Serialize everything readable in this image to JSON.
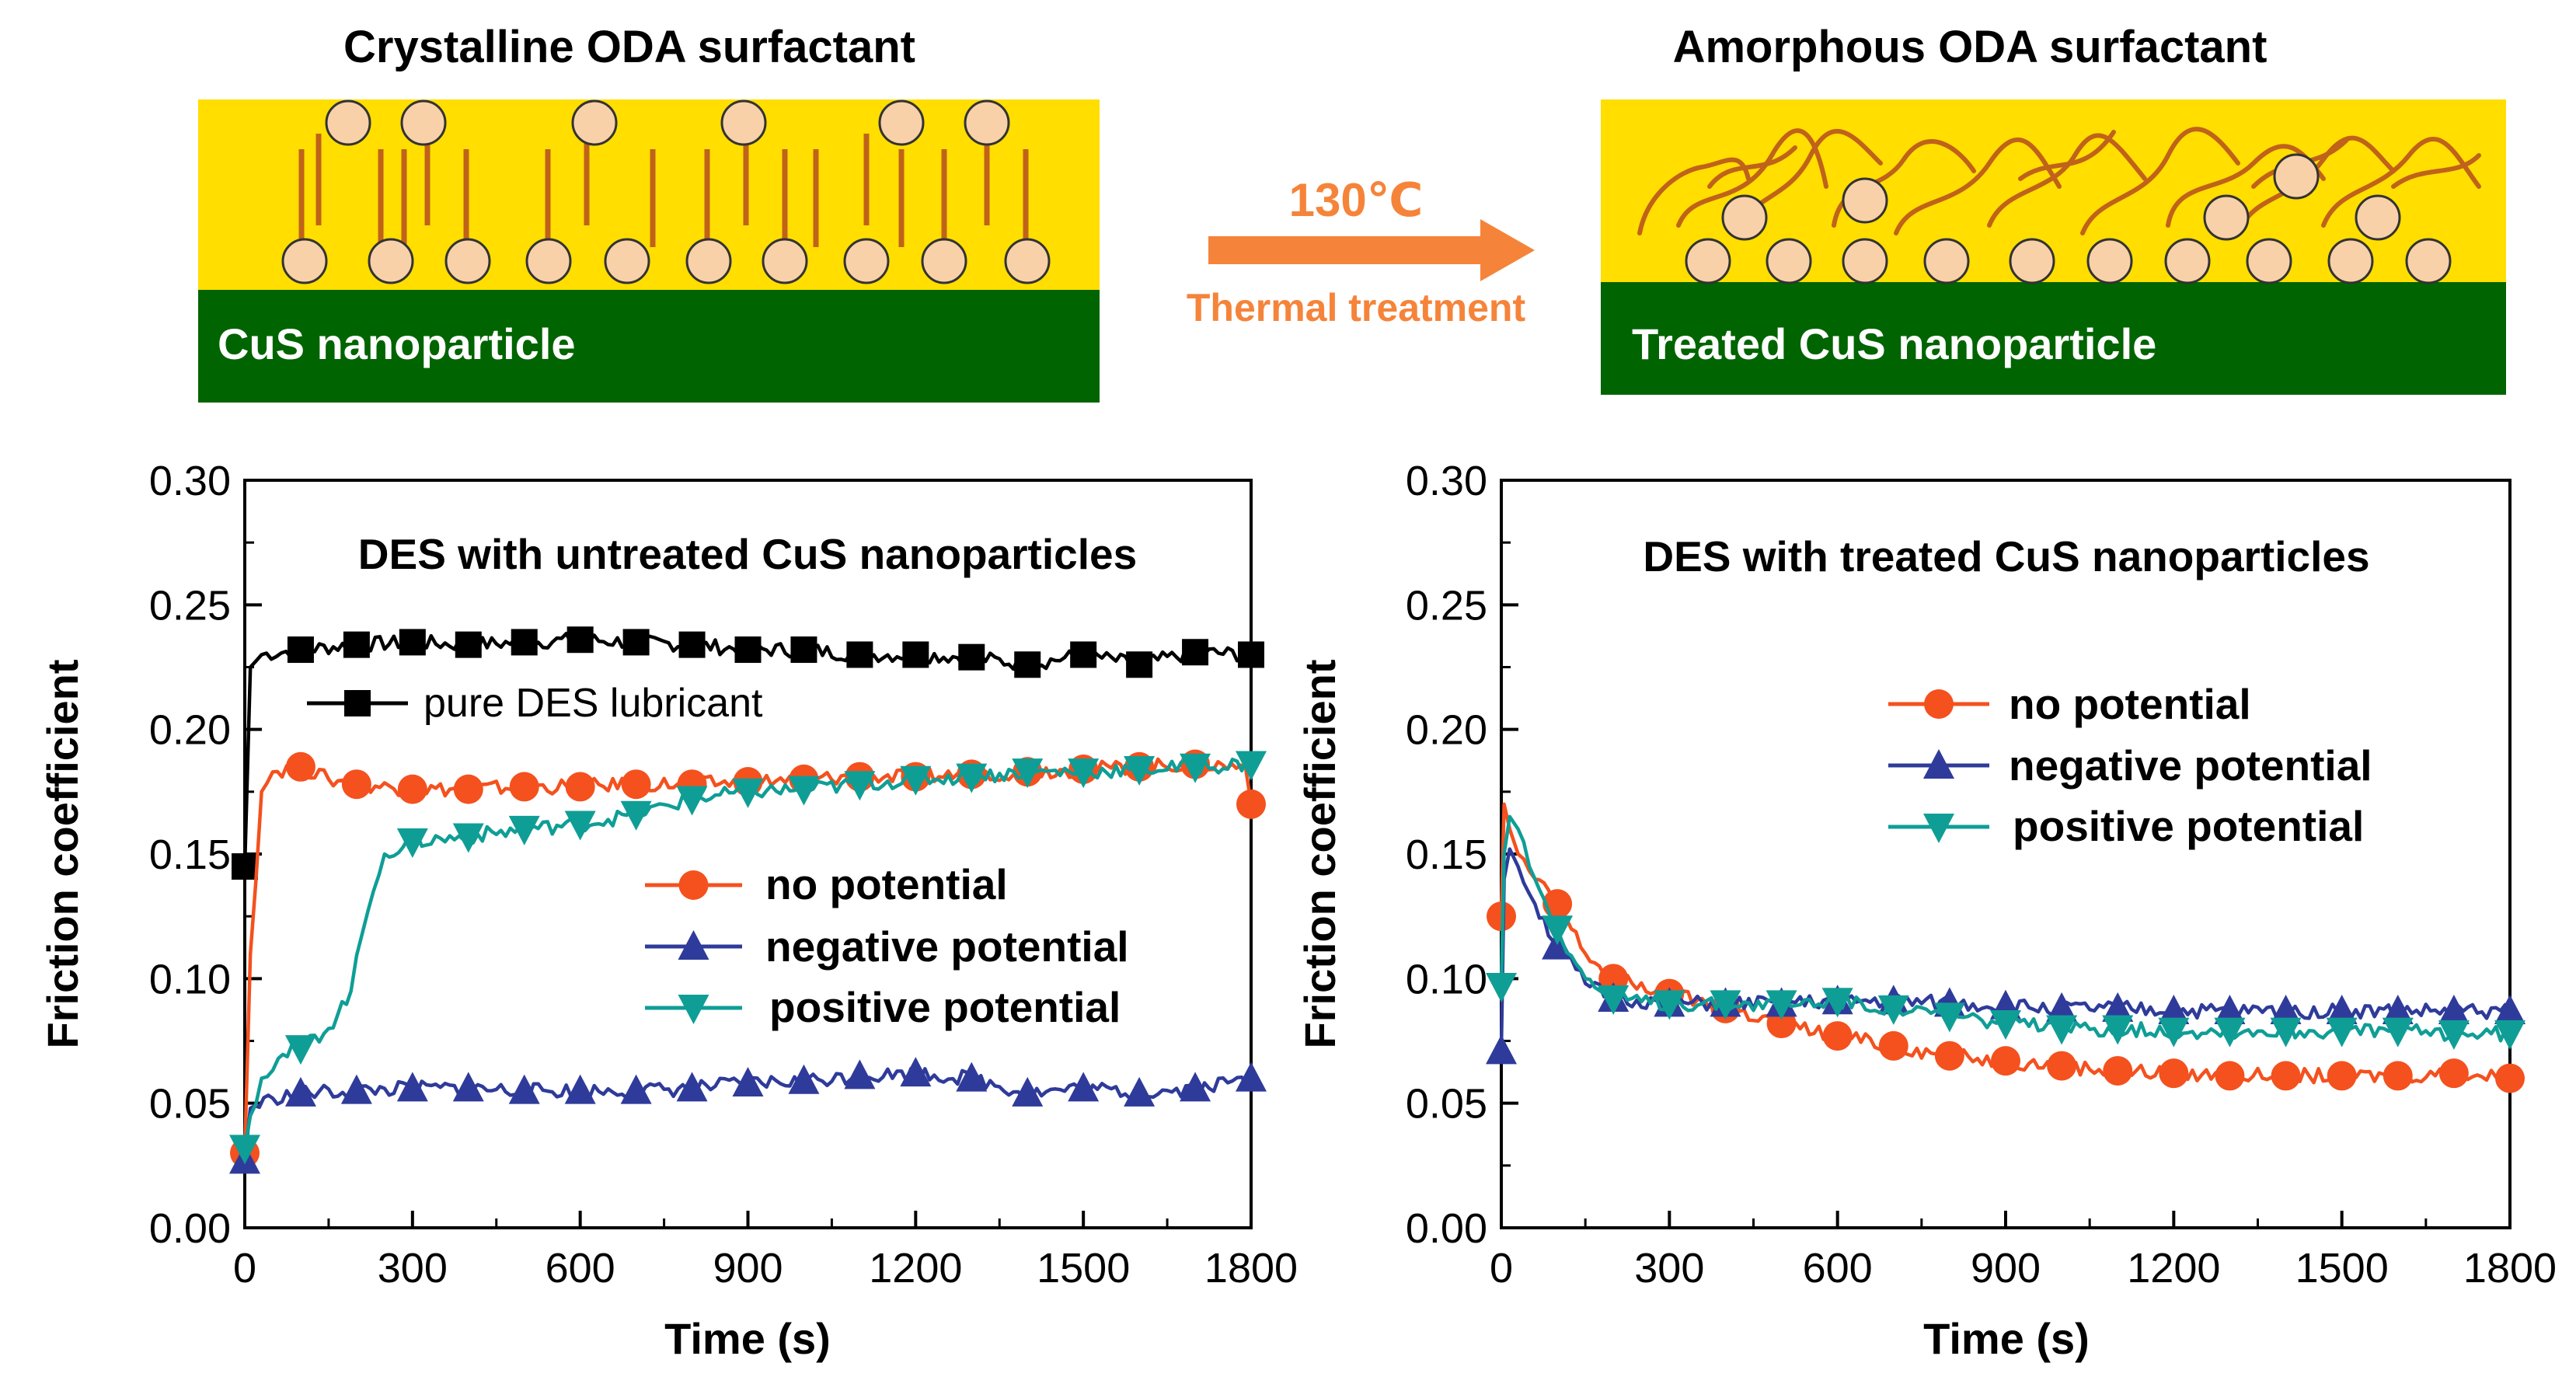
{
  "schematic": {
    "left": {
      "title": "Crystalline ODA surfactant",
      "substrate_label": "CuS nanoparticle"
    },
    "arrow": {
      "temperature": "130℃",
      "caption": "Thermal treatment"
    },
    "right": {
      "title": "Amorphous ODA surfactant",
      "substrate_label": "Treated CuS nanoparticle"
    },
    "colors": {
      "coating": "#ffde00",
      "substrate": "#006400",
      "head": "#f9d1a8",
      "tail": "#c0621a",
      "arrow": "#f5843a"
    }
  },
  "chart_data": [
    {
      "type": "line",
      "title": "DES with untreated CuS nanoparticles",
      "xlabel": "Time (s)",
      "ylabel": "Friction coefficient",
      "xlim": [
        0,
        1800
      ],
      "ylim": [
        0,
        0.3
      ],
      "xticks": [
        "0",
        "300",
        "600",
        "900",
        "1200",
        "1500",
        "1800"
      ],
      "yticks": [
        "0.00",
        "0.05",
        "0.10",
        "0.15",
        "0.20",
        "0.25",
        "0.30"
      ],
      "legends": [
        {
          "entries": [
            "pure DES lubricant"
          ]
        },
        {
          "entries": [
            "no potential",
            "negative potential",
            "positive potential"
          ]
        }
      ],
      "series": [
        {
          "name": "pure DES lubricant",
          "color": "#000000",
          "marker": "square",
          "x": [
            0,
            10,
            30,
            100,
            200,
            300,
            400,
            500,
            600,
            700,
            800,
            900,
            1000,
            1100,
            1200,
            1300,
            1400,
            1500,
            1600,
            1700,
            1800
          ],
          "y": [
            0.145,
            0.225,
            0.23,
            0.232,
            0.234,
            0.235,
            0.234,
            0.235,
            0.236,
            0.235,
            0.234,
            0.232,
            0.232,
            0.23,
            0.23,
            0.229,
            0.226,
            0.23,
            0.226,
            0.231,
            0.23
          ]
        },
        {
          "name": "no potential",
          "color": "#f4511e",
          "marker": "circle",
          "x": [
            0,
            10,
            30,
            50,
            100,
            150,
            200,
            300,
            400,
            500,
            600,
            700,
            800,
            900,
            1000,
            1100,
            1200,
            1300,
            1400,
            1500,
            1600,
            1700,
            1790,
            1800
          ],
          "y": [
            0.03,
            0.11,
            0.175,
            0.183,
            0.185,
            0.18,
            0.178,
            0.176,
            0.176,
            0.177,
            0.177,
            0.178,
            0.178,
            0.179,
            0.18,
            0.181,
            0.181,
            0.182,
            0.183,
            0.184,
            0.185,
            0.186,
            0.185,
            0.17
          ]
        },
        {
          "name": "negative potential",
          "color": "#2f3b9a",
          "marker": "triangle-up",
          "x": [
            0,
            10,
            50,
            100,
            200,
            300,
            400,
            500,
            600,
            700,
            800,
            900,
            1000,
            1100,
            1200,
            1300,
            1400,
            1500,
            1600,
            1700,
            1800
          ],
          "y": [
            0.027,
            0.048,
            0.052,
            0.054,
            0.055,
            0.056,
            0.056,
            0.055,
            0.055,
            0.055,
            0.056,
            0.058,
            0.059,
            0.061,
            0.062,
            0.06,
            0.054,
            0.056,
            0.054,
            0.056,
            0.06
          ]
        },
        {
          "name": "positive potential",
          "color": "#0f9e96",
          "marker": "triangle-down",
          "x": [
            0,
            10,
            30,
            60,
            100,
            150,
            190,
            210,
            230,
            250,
            300,
            400,
            500,
            600,
            700,
            800,
            900,
            1000,
            1100,
            1200,
            1300,
            1400,
            1500,
            1600,
            1700,
            1800
          ],
          "y": [
            0.032,
            0.045,
            0.06,
            0.068,
            0.072,
            0.08,
            0.095,
            0.118,
            0.135,
            0.15,
            0.155,
            0.157,
            0.16,
            0.162,
            0.166,
            0.172,
            0.175,
            0.176,
            0.178,
            0.18,
            0.181,
            0.183,
            0.183,
            0.184,
            0.185,
            0.186
          ]
        }
      ]
    },
    {
      "type": "line",
      "title": "DES with treated CuS nanoparticles",
      "xlabel": "Time (s)",
      "ylabel": "Friction coefficient",
      "xlim": [
        0,
        1800
      ],
      "ylim": [
        0,
        0.3
      ],
      "xticks": [
        "0",
        "300",
        "600",
        "900",
        "1200",
        "1500",
        "1800"
      ],
      "yticks": [
        "0.00",
        "0.05",
        "0.10",
        "0.15",
        "0.20",
        "0.25",
        "0.30"
      ],
      "legends": [
        {
          "entries": [
            "no potential",
            "negative potential",
            "positive potential"
          ]
        }
      ],
      "series": [
        {
          "name": "no potential",
          "color": "#f4511e",
          "marker": "circle",
          "x": [
            0,
            5,
            15,
            30,
            60,
            100,
            150,
            200,
            300,
            400,
            500,
            600,
            700,
            800,
            900,
            1000,
            1100,
            1200,
            1300,
            1400,
            1500,
            1600,
            1700,
            1800
          ],
          "y": [
            0.125,
            0.17,
            0.16,
            0.15,
            0.14,
            0.13,
            0.11,
            0.1,
            0.094,
            0.088,
            0.082,
            0.077,
            0.073,
            0.069,
            0.067,
            0.065,
            0.063,
            0.062,
            0.061,
            0.061,
            0.061,
            0.061,
            0.062,
            0.06
          ]
        },
        {
          "name": "negative potential",
          "color": "#2f3b9a",
          "marker": "triangle-up",
          "x": [
            0,
            5,
            15,
            30,
            60,
            100,
            150,
            200,
            300,
            400,
            500,
            600,
            700,
            800,
            900,
            1000,
            1100,
            1200,
            1300,
            1400,
            1500,
            1600,
            1700,
            1800
          ],
          "y": [
            0.071,
            0.14,
            0.152,
            0.145,
            0.13,
            0.113,
            0.098,
            0.092,
            0.09,
            0.09,
            0.09,
            0.091,
            0.091,
            0.09,
            0.089,
            0.088,
            0.088,
            0.087,
            0.087,
            0.087,
            0.087,
            0.087,
            0.087,
            0.087
          ]
        },
        {
          "name": "positive potential",
          "color": "#0f9e96",
          "marker": "triangle-down",
          "x": [
            0,
            5,
            15,
            30,
            60,
            100,
            150,
            200,
            300,
            400,
            500,
            600,
            700,
            800,
            900,
            1000,
            1100,
            1200,
            1300,
            1400,
            1500,
            1600,
            1700,
            1800
          ],
          "y": [
            0.097,
            0.15,
            0.165,
            0.16,
            0.14,
            0.12,
            0.1,
            0.092,
            0.09,
            0.09,
            0.09,
            0.091,
            0.088,
            0.085,
            0.082,
            0.08,
            0.08,
            0.079,
            0.079,
            0.079,
            0.079,
            0.079,
            0.078,
            0.078
          ]
        }
      ]
    }
  ]
}
